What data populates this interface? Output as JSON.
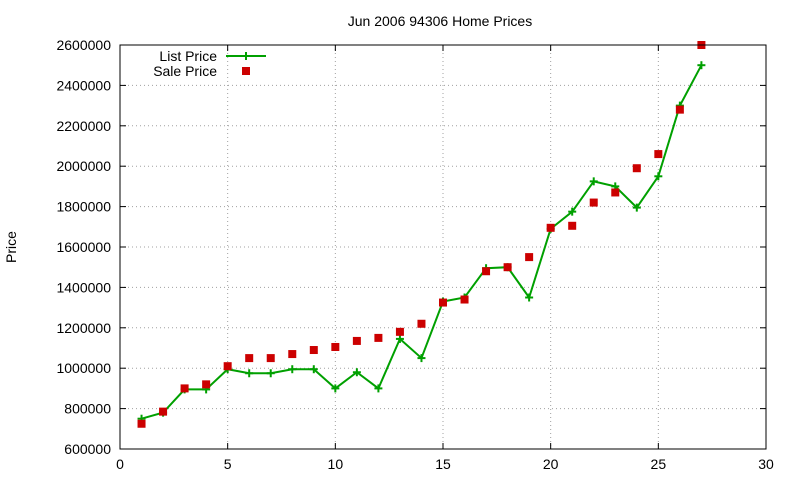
{
  "chart_data": {
    "type": "line",
    "title": "Jun 2006 94306 Home Prices",
    "xlabel": "",
    "ylabel": "Price",
    "xlim": [
      0,
      30
    ],
    "ylim": [
      600000,
      2600000
    ],
    "xticks": [
      0,
      5,
      10,
      15,
      20,
      25,
      30
    ],
    "yticks": [
      600000,
      800000,
      1000000,
      1200000,
      1400000,
      1600000,
      1800000,
      2000000,
      2200000,
      2400000,
      2600000
    ],
    "grid": true,
    "legend_position": "top-left",
    "series": [
      {
        "name": "List Price",
        "kind": "line-with-plus-markers",
        "color": "#00a000",
        "x": [
          1,
          2,
          3,
          4,
          5,
          6,
          7,
          8,
          9,
          10,
          11,
          12,
          13,
          14,
          15,
          16,
          17,
          18,
          19,
          20,
          21,
          22,
          23,
          24,
          25,
          26,
          27
        ],
        "y": [
          750000,
          780000,
          895000,
          895000,
          995000,
          975000,
          975000,
          995000,
          995000,
          900000,
          980000,
          900000,
          1145000,
          1050000,
          1330000,
          1350000,
          1495000,
          1500000,
          1350000,
          1690000,
          1775000,
          1925000,
          1900000,
          1795000,
          1950000,
          2300000,
          2500000
        ]
      },
      {
        "name": "Sale Price",
        "kind": "square-markers",
        "color": "#cc0000",
        "x": [
          1,
          2,
          3,
          4,
          5,
          6,
          7,
          8,
          9,
          10,
          11,
          12,
          13,
          14,
          15,
          16,
          17,
          18,
          19,
          20,
          21,
          22,
          23,
          24,
          25,
          26,
          27
        ],
        "y": [
          725000,
          785000,
          900000,
          920000,
          1010000,
          1050000,
          1050000,
          1070000,
          1090000,
          1105000,
          1135000,
          1150000,
          1180000,
          1220000,
          1325000,
          1340000,
          1480000,
          1500000,
          1550000,
          1695000,
          1705000,
          1820000,
          1870000,
          1990000,
          2060000,
          2280000,
          2600000
        ]
      }
    ]
  }
}
